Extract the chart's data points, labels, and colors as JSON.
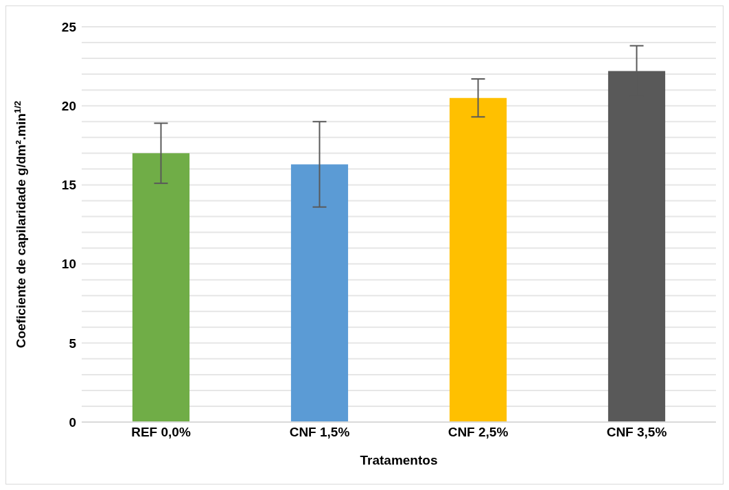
{
  "chart_data": {
    "type": "bar",
    "xlabel": "Tratamentos",
    "ylabel": "Coeficiente de capilaridade g/dm².min$^{1/2}$",
    "categories": [
      "REF 0,0%",
      "CNF 1,5%",
      "CNF 2,5%",
      "CNF 3,5%"
    ],
    "values": [
      17.0,
      16.3,
      20.5,
      22.2
    ],
    "errors": [
      1.9,
      2.7,
      1.2,
      1.6
    ],
    "colors": [
      "#70ad47",
      "#5b9bd5",
      "#ffc000",
      "#595959"
    ],
    "ylim": [
      0,
      25
    ],
    "yticks": [
      0,
      {
        "value": 1,
        "label": null
      },
      {
        "value": 2,
        "label": null
      },
      {
        "value": 3,
        "label": null
      },
      {
        "value": 4,
        "label": null
      },
      5,
      {
        "value": 6,
        "label": null
      },
      {
        "value": 7,
        "label": null
      },
      {
        "value": 8,
        "label": null
      },
      {
        "value": 9,
        "label": null
      },
      10,
      {
        "value": 11,
        "label": null
      },
      {
        "value": 12,
        "label": null
      },
      {
        "value": 13,
        "label": null
      },
      {
        "value": 14,
        "label": null
      },
      15,
      {
        "value": 16,
        "label": null
      },
      {
        "value": 17,
        "label": null
      },
      {
        "value": 18,
        "label": null
      },
      {
        "value": 19,
        "label": null
      },
      20,
      {
        "value": 21,
        "label": null
      },
      {
        "value": 22,
        "label": null
      },
      {
        "value": 23,
        "label": null
      },
      {
        "value": 24,
        "label": null
      },
      25
    ],
    "grid": "y"
  }
}
